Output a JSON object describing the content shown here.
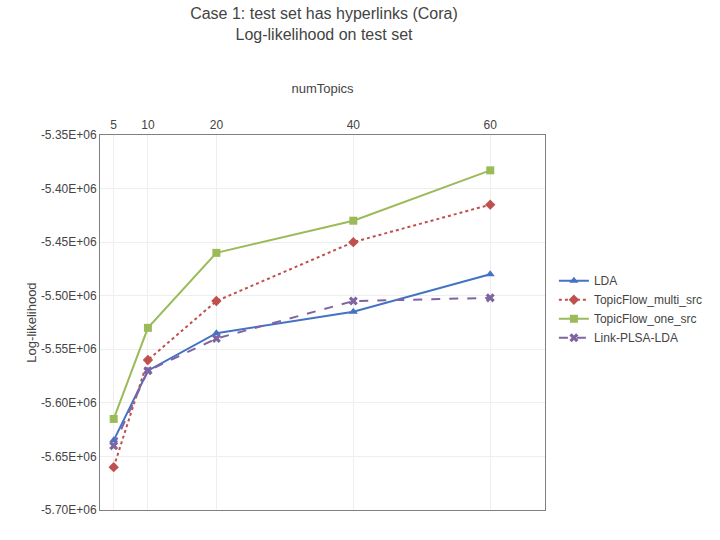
{
  "chart_data": {
    "type": "line",
    "title": "Case 1: test set has hyperlinks (Cora)",
    "subtitle": "Log-likelihood on test set",
    "xlabel": "numTopics",
    "ylabel": "Log-likelihood",
    "x": [
      5,
      10,
      20,
      40,
      60
    ],
    "series": [
      {
        "name": "LDA",
        "color": "#4472C4",
        "marker": "triangle-up",
        "line_style": "solid",
        "values": [
          -5635000,
          -5570000,
          -5535000,
          -5515000,
          -5480000
        ]
      },
      {
        "name": "TopicFlow_multi_src",
        "color": "#C0504D",
        "marker": "diamond",
        "line_style": "dotted",
        "values": [
          -5660000,
          -5560000,
          -5505000,
          -5450000,
          -5415000
        ]
      },
      {
        "name": "TopicFlow_one_src",
        "color": "#9BBB59",
        "marker": "square",
        "line_style": "solid",
        "values": [
          -5615000,
          -5530000,
          -5460000,
          -5430000,
          -5383000
        ]
      },
      {
        "name": "Link-PLSA-LDA",
        "color": "#8064A2",
        "marker": "x",
        "line_style": "dashed",
        "values": [
          -5640000,
          -5570000,
          -5540000,
          -5505000,
          -5502000
        ]
      }
    ],
    "xlim": [
      3,
      68
    ],
    "xticks": [
      5,
      10,
      20,
      40,
      60
    ],
    "ylim": [
      -5700000,
      -5350000
    ],
    "yticks": [
      {
        "value": -5350000,
        "label": "-5.35E+06"
      },
      {
        "value": -5400000,
        "label": "-5.40E+06"
      },
      {
        "value": -5450000,
        "label": "-5.45E+06"
      },
      {
        "value": -5500000,
        "label": "-5.50E+06"
      },
      {
        "value": -5550000,
        "label": "-5.55E+06"
      },
      {
        "value": -5600000,
        "label": "-5.60E+06"
      },
      {
        "value": -5650000,
        "label": "-5.65E+06"
      },
      {
        "value": -5700000,
        "label": "-5.70E+06"
      }
    ],
    "grid": true,
    "legend": "right"
  }
}
